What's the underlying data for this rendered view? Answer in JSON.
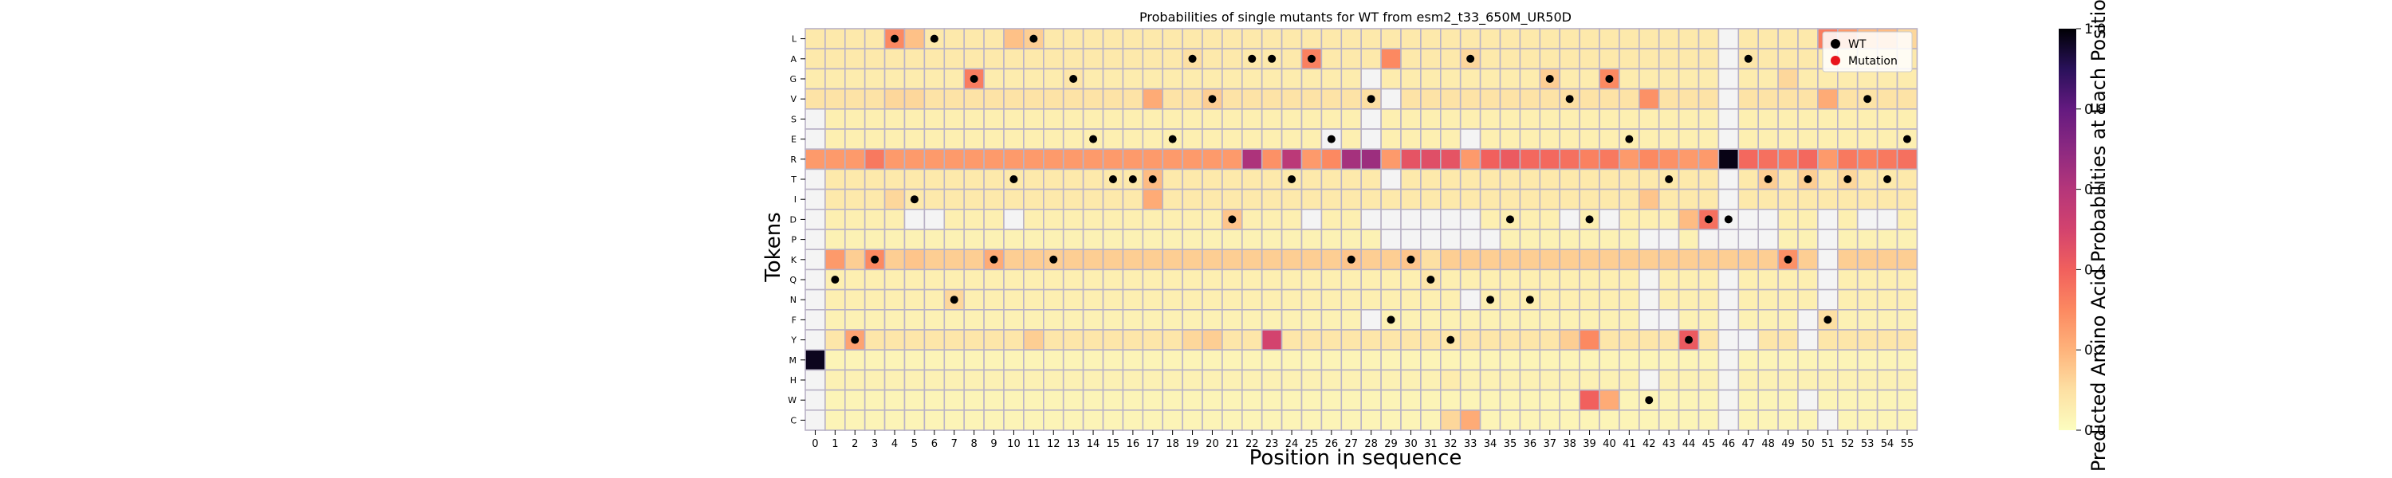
{
  "chart_data": {
    "type": "heatmap",
    "title": "Probabilities of single mutants for WT from esm2_t33_650M_UR50D",
    "xlabel": "Position in sequence",
    "ylabel": "Tokens",
    "x_ticks": [
      "0",
      "1",
      "2",
      "3",
      "4",
      "5",
      "6",
      "7",
      "8",
      "9",
      "10",
      "11",
      "12",
      "13",
      "14",
      "15",
      "16",
      "17",
      "18",
      "19",
      "20",
      "21",
      "22",
      "23",
      "24",
      "25",
      "26",
      "27",
      "28",
      "29",
      "30",
      "31",
      "32",
      "33",
      "34",
      "35",
      "36",
      "37",
      "38",
      "39",
      "40",
      "41",
      "42",
      "43",
      "44",
      "45",
      "46",
      "47",
      "48",
      "49",
      "50",
      "51",
      "52",
      "53",
      "54",
      "55"
    ],
    "y_tokens": [
      "L",
      "A",
      "G",
      "V",
      "S",
      "E",
      "R",
      "T",
      "I",
      "D",
      "P",
      "K",
      "Q",
      "N",
      "F",
      "Y",
      "M",
      "H",
      "W",
      "C"
    ],
    "colormap": "magma_r",
    "colorbar": {
      "label": "Predicted Amino Acid Probabilities at Each Position",
      "range": [
        0.0,
        1.0
      ],
      "ticks": [
        "0.0",
        "0.2",
        "0.4",
        "0.6",
        "0.8",
        "1.0"
      ]
    },
    "legend": {
      "placement": "top-right",
      "entries": [
        {
          "label": "WT",
          "color": "#000000"
        },
        {
          "label": "Mutation",
          "color": "#e8141c"
        }
      ]
    },
    "missing_color": "#f4f4f4",
    "background_value": 0.04,
    "row_base": {
      "L": 0.07,
      "A": 0.07,
      "G": 0.06,
      "V": 0.09,
      "S": 0.05,
      "E": 0.05,
      "R": 0.26,
      "T": 0.07,
      "I": 0.07,
      "D": 0.05,
      "P": 0.04,
      "K": 0.14,
      "Q": 0.05,
      "N": 0.05,
      "F": 0.04,
      "Y": 0.08,
      "M": 0.03,
      "H": 0.04,
      "W": 0.03,
      "C": 0.03
    },
    "cells": [
      [
        "M",
        0,
        0.97
      ],
      [
        "L",
        4,
        0.3
      ],
      [
        "L",
        5,
        0.17
      ],
      [
        "L",
        10,
        0.17
      ],
      [
        "L",
        11,
        0.14
      ],
      [
        "L",
        51,
        0.33
      ],
      [
        "L",
        52,
        0.26
      ],
      [
        "L",
        53,
        0.18
      ],
      [
        "L",
        54,
        0.18
      ],
      [
        "L",
        55,
        0.12
      ],
      [
        "A",
        25,
        0.32
      ],
      [
        "A",
        29,
        0.3
      ],
      [
        "A",
        19,
        0.1
      ],
      [
        "A",
        33,
        0.12
      ],
      [
        "A",
        47,
        0.08
      ],
      [
        "G",
        8,
        0.33
      ],
      [
        "G",
        40,
        0.3
      ],
      [
        "G",
        37,
        0.14
      ],
      [
        "G",
        13,
        0.08
      ],
      [
        "G",
        49,
        0.12
      ],
      [
        "V",
        17,
        0.22
      ],
      [
        "V",
        42,
        0.28
      ],
      [
        "V",
        51,
        0.22
      ],
      [
        "V",
        20,
        0.14
      ],
      [
        "V",
        28,
        0.1
      ],
      [
        "V",
        38,
        0.1
      ],
      [
        "V",
        4,
        0.12
      ],
      [
        "V",
        5,
        0.12
      ],
      [
        "R",
        22,
        0.62
      ],
      [
        "R",
        24,
        0.58
      ],
      [
        "R",
        27,
        0.64
      ],
      [
        "R",
        28,
        0.66
      ],
      [
        "R",
        46,
        0.98
      ],
      [
        "R",
        3,
        0.34
      ],
      [
        "R",
        23,
        0.28
      ],
      [
        "R",
        26,
        0.3
      ],
      [
        "R",
        30,
        0.44
      ],
      [
        "R",
        31,
        0.46
      ],
      [
        "R",
        32,
        0.44
      ],
      [
        "R",
        34,
        0.4
      ],
      [
        "R",
        35,
        0.42
      ],
      [
        "R",
        36,
        0.38
      ],
      [
        "R",
        37,
        0.38
      ],
      [
        "R",
        38,
        0.36
      ],
      [
        "R",
        39,
        0.32
      ],
      [
        "R",
        40,
        0.34
      ],
      [
        "R",
        47,
        0.38
      ],
      [
        "R",
        48,
        0.36
      ],
      [
        "R",
        49,
        0.34
      ],
      [
        "R",
        50,
        0.38
      ],
      [
        "R",
        52,
        0.34
      ],
      [
        "R",
        53,
        0.32
      ],
      [
        "R",
        54,
        0.34
      ],
      [
        "R",
        55,
        0.36
      ],
      [
        "R",
        42,
        0.3
      ],
      [
        "R",
        43,
        0.28
      ],
      [
        "T",
        17,
        0.18
      ],
      [
        "T",
        48,
        0.14
      ],
      [
        "T",
        50,
        0.14
      ],
      [
        "T",
        52,
        0.12
      ],
      [
        "I",
        17,
        0.22
      ],
      [
        "I",
        42,
        0.16
      ],
      [
        "I",
        4,
        0.12
      ],
      [
        "D",
        45,
        0.36
      ],
      [
        "D",
        21,
        0.16
      ],
      [
        "D",
        44,
        0.18
      ],
      [
        "K",
        1,
        0.26
      ],
      [
        "K",
        3,
        0.3
      ],
      [
        "K",
        49,
        0.28
      ],
      [
        "K",
        9,
        0.22
      ],
      [
        "K",
        5,
        0.16
      ],
      [
        "K",
        8,
        0.14
      ],
      [
        "K",
        27,
        0.16
      ],
      [
        "K",
        30,
        0.16
      ],
      [
        "K",
        31,
        0.1
      ],
      [
        "Y",
        2,
        0.24
      ],
      [
        "Y",
        23,
        0.5
      ],
      [
        "Y",
        44,
        0.42
      ],
      [
        "Y",
        39,
        0.3
      ],
      [
        "Y",
        11,
        0.14
      ],
      [
        "Y",
        20,
        0.14
      ],
      [
        "Y",
        19,
        0.12
      ],
      [
        "Y",
        38,
        0.14
      ],
      [
        "W",
        39,
        0.4
      ],
      [
        "W",
        40,
        0.22
      ],
      [
        "C",
        33,
        0.22
      ],
      [
        "C",
        32,
        0.12
      ],
      [
        "Q",
        31,
        0.08
      ],
      [
        "N",
        7,
        0.12
      ],
      [
        "F",
        51,
        0.1
      ],
      [
        "H",
        32,
        0.06
      ],
      [
        "S",
        0,
        -1
      ],
      [
        "E",
        0,
        -1
      ],
      [
        "T",
        0,
        -1
      ],
      [
        "I",
        0,
        -1
      ],
      [
        "D",
        0,
        -1
      ],
      [
        "P",
        0,
        -1
      ],
      [
        "K",
        0,
        -1
      ],
      [
        "Q",
        0,
        -1
      ],
      [
        "N",
        0,
        -1
      ],
      [
        "F",
        0,
        -1
      ],
      [
        "Y",
        0,
        -1
      ],
      [
        "H",
        0,
        -1
      ],
      [
        "W",
        0,
        -1
      ],
      [
        "C",
        0,
        -1
      ],
      [
        "L",
        46,
        -1
      ],
      [
        "A",
        46,
        -1
      ],
      [
        "G",
        46,
        -1
      ],
      [
        "V",
        46,
        -1
      ],
      [
        "S",
        46,
        -1
      ],
      [
        "E",
        46,
        -1
      ],
      [
        "T",
        46,
        -1
      ],
      [
        "I",
        46,
        -1
      ],
      [
        "D",
        46,
        -1
      ],
      [
        "P",
        46,
        -1
      ],
      [
        "Q",
        46,
        -1
      ],
      [
        "N",
        46,
        -1
      ],
      [
        "F",
        46,
        -1
      ],
      [
        "Y",
        46,
        -1
      ],
      [
        "M",
        46,
        -1
      ],
      [
        "H",
        46,
        -1
      ],
      [
        "W",
        46,
        -1
      ],
      [
        "C",
        46,
        -1
      ],
      [
        "D",
        5,
        -1
      ],
      [
        "D",
        6,
        -1
      ],
      [
        "D",
        10,
        -1
      ],
      [
        "D",
        25,
        -1
      ],
      [
        "D",
        28,
        -1
      ],
      [
        "D",
        29,
        -1
      ],
      [
        "D",
        30,
        -1
      ],
      [
        "D",
        31,
        -1
      ],
      [
        "D",
        32,
        -1
      ],
      [
        "D",
        33,
        -1
      ],
      [
        "D",
        38,
        -1
      ],
      [
        "D",
        40,
        -1
      ],
      [
        "D",
        47,
        -1
      ],
      [
        "D",
        48,
        -1
      ],
      [
        "D",
        51,
        -1
      ],
      [
        "D",
        53,
        -1
      ],
      [
        "D",
        54,
        -1
      ],
      [
        "P",
        29,
        -1
      ],
      [
        "P",
        30,
        -1
      ],
      [
        "P",
        31,
        -1
      ],
      [
        "P",
        32,
        -1
      ],
      [
        "P",
        33,
        -1
      ],
      [
        "P",
        34,
        -1
      ],
      [
        "P",
        42,
        -1
      ],
      [
        "P",
        43,
        -1
      ],
      [
        "P",
        45,
        -1
      ],
      [
        "P",
        47,
        -1
      ],
      [
        "P",
        48,
        -1
      ],
      [
        "P",
        51,
        -1
      ],
      [
        "K",
        51,
        -1
      ],
      [
        "Q",
        42,
        -1
      ],
      [
        "Q",
        51,
        -1
      ],
      [
        "N",
        33,
        -1
      ],
      [
        "N",
        42,
        -1
      ],
      [
        "N",
        51,
        -1
      ],
      [
        "F",
        28,
        -1
      ],
      [
        "F",
        42,
        -1
      ],
      [
        "F",
        43,
        -1
      ],
      [
        "F",
        50,
        -1
      ],
      [
        "Y",
        47,
        -1
      ],
      [
        "Y",
        50,
        -1
      ],
      [
        "S",
        28,
        -1
      ],
      [
        "E",
        28,
        -1
      ],
      [
        "H",
        42,
        -1
      ],
      [
        "W",
        50,
        -1
      ],
      [
        "C",
        51,
        -1
      ],
      [
        "E",
        26,
        -1
      ],
      [
        "E",
        33,
        -1
      ],
      [
        "E",
        46,
        -1
      ],
      [
        "T",
        29,
        -1
      ],
      [
        "V",
        29,
        -1
      ],
      [
        "G",
        28,
        -1
      ]
    ],
    "wt_points": [
      [
        "L",
        4
      ],
      [
        "L",
        6
      ],
      [
        "L",
        11
      ],
      [
        "A",
        19
      ],
      [
        "A",
        22
      ],
      [
        "A",
        23
      ],
      [
        "A",
        25
      ],
      [
        "A",
        33
      ],
      [
        "A",
        47
      ],
      [
        "G",
        8
      ],
      [
        "G",
        13
      ],
      [
        "G",
        37
      ],
      [
        "G",
        40
      ],
      [
        "V",
        20
      ],
      [
        "V",
        28
      ],
      [
        "V",
        38
      ],
      [
        "V",
        53
      ],
      [
        "E",
        14
      ],
      [
        "E",
        18
      ],
      [
        "E",
        26
      ],
      [
        "E",
        41
      ],
      [
        "E",
        55
      ],
      [
        "T",
        10
      ],
      [
        "T",
        15
      ],
      [
        "T",
        16
      ],
      [
        "T",
        17
      ],
      [
        "T",
        24
      ],
      [
        "T",
        43
      ],
      [
        "T",
        48
      ],
      [
        "T",
        50
      ],
      [
        "T",
        52
      ],
      [
        "T",
        54
      ],
      [
        "I",
        5
      ],
      [
        "D",
        21
      ],
      [
        "D",
        35
      ],
      [
        "D",
        39
      ],
      [
        "D",
        45
      ],
      [
        "D",
        46
      ],
      [
        "K",
        3
      ],
      [
        "K",
        9
      ],
      [
        "K",
        12
      ],
      [
        "K",
        27
      ],
      [
        "K",
        30
      ],
      [
        "K",
        49
      ],
      [
        "Q",
        1
      ],
      [
        "Q",
        31
      ],
      [
        "N",
        7
      ],
      [
        "N",
        34
      ],
      [
        "N",
        36
      ],
      [
        "F",
        29
      ],
      [
        "F",
        51
      ],
      [
        "Y",
        2
      ],
      [
        "Y",
        32
      ],
      [
        "Y",
        44
      ],
      [
        "W",
        42
      ]
    ]
  }
}
